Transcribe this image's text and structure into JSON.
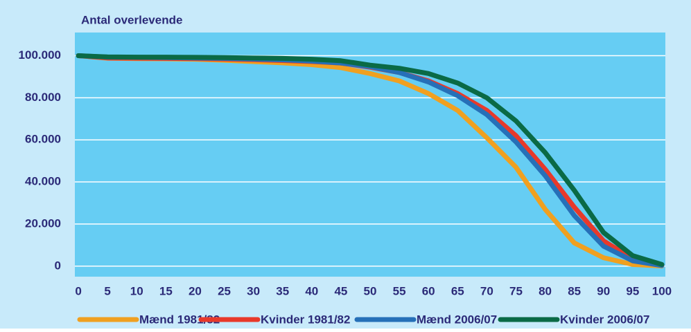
{
  "chart_data": {
    "type": "line",
    "title": "Antal overlevende",
    "x": [
      0,
      5,
      10,
      15,
      20,
      25,
      30,
      35,
      40,
      45,
      50,
      55,
      60,
      65,
      70,
      75,
      80,
      85,
      90,
      95,
      100
    ],
    "series": [
      {
        "name": "Mænd 1981/82",
        "color": "#f0a020",
        "values": [
          100000,
          98800,
          98600,
          98500,
          98300,
          97800,
          97200,
          96600,
          95700,
          94300,
          91500,
          88000,
          82000,
          74000,
          61000,
          47000,
          27000,
          11000,
          4000,
          800,
          100
        ]
      },
      {
        "name": "Kvinder 1981/82",
        "color": "#e8392a",
        "values": [
          100000,
          98900,
          98800,
          98700,
          98600,
          98400,
          98100,
          97700,
          97200,
          96500,
          94500,
          92000,
          88000,
          82000,
          74000,
          62000,
          46000,
          28000,
          12000,
          3500,
          500
        ]
      },
      {
        "name": "Mænd 2006/07",
        "color": "#2670b8",
        "values": [
          100000,
          99300,
          99200,
          99100,
          98900,
          98700,
          98400,
          98000,
          97400,
          96500,
          94800,
          92000,
          87500,
          81000,
          72000,
          59000,
          43000,
          24000,
          9500,
          2500,
          300
        ]
      },
      {
        "name": "Kvinder 2006/07",
        "color": "#0a6a46",
        "values": [
          100000,
          99400,
          99300,
          99300,
          99200,
          99100,
          98900,
          98700,
          98300,
          97600,
          95500,
          94000,
          91500,
          87000,
          80000,
          69000,
          54000,
          36000,
          16000,
          5000,
          800
        ]
      }
    ],
    "xlim": [
      -0.6,
      100.6
    ],
    "ylim": [
      -5000,
      111000
    ],
    "xticks": [
      0,
      5,
      10,
      15,
      20,
      25,
      30,
      35,
      40,
      45,
      50,
      55,
      60,
      65,
      70,
      75,
      80,
      85,
      90,
      95,
      100
    ],
    "yticks": [
      0,
      {
        "value": 20000,
        "label": "20.000"
      },
      {
        "value": 40000,
        "label": "40.000"
      },
      {
        "value": 60000,
        "label": "60.000"
      },
      {
        "value": 80000,
        "label": "80.000"
      },
      {
        "value": 100000,
        "label": "100.000"
      }
    ],
    "grid": true
  }
}
